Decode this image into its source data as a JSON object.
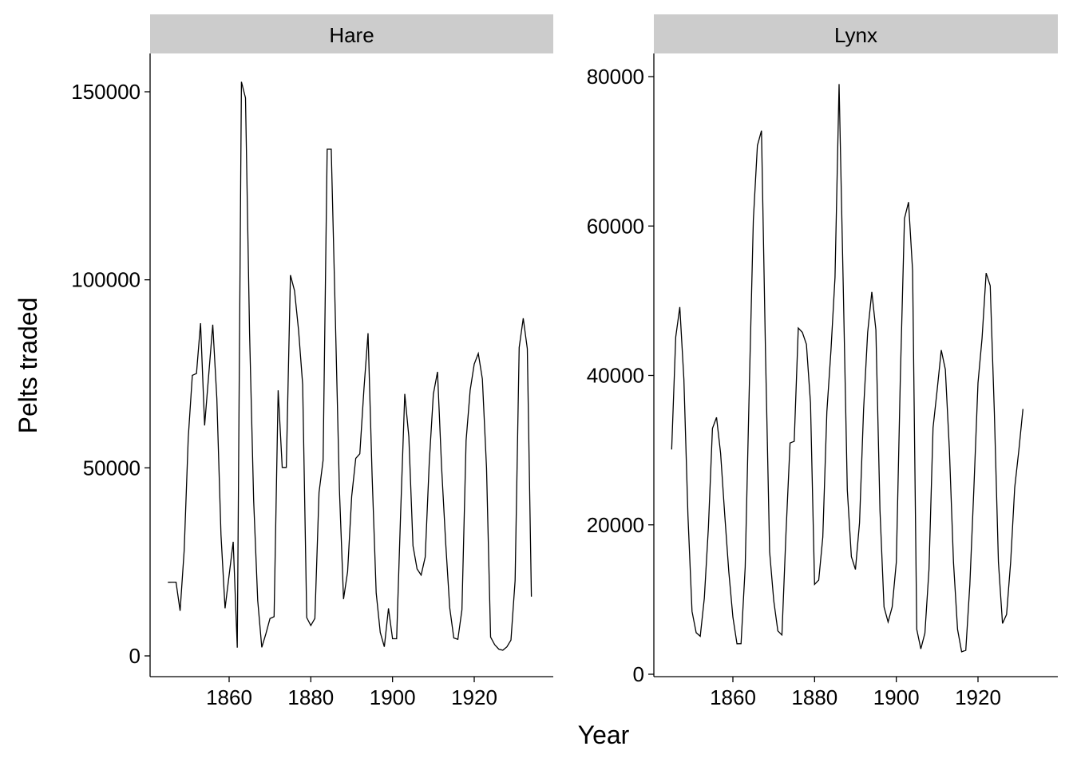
{
  "chart_data": {
    "type": "line",
    "title": "",
    "xlabel": "Year",
    "ylabel": "Pelts traded",
    "xlim": [
      1845,
      1935
    ],
    "panels": [
      {
        "name": "Hare",
        "ylim": [
          0,
          160000
        ],
        "y_ticks": [
          0,
          50000,
          100000,
          150000
        ],
        "x_ticks": [
          1860,
          1880,
          1900,
          1920
        ],
        "x": [
          1845,
          1846,
          1847,
          1848,
          1849,
          1850,
          1851,
          1852,
          1853,
          1854,
          1855,
          1856,
          1857,
          1858,
          1859,
          1860,
          1861,
          1862,
          1863,
          1864,
          1865,
          1866,
          1867,
          1868,
          1869,
          1870,
          1871,
          1872,
          1873,
          1874,
          1875,
          1876,
          1877,
          1878,
          1879,
          1880,
          1881,
          1882,
          1883,
          1884,
          1885,
          1886,
          1887,
          1888,
          1889,
          1890,
          1891,
          1892,
          1893,
          1894,
          1895,
          1896,
          1897,
          1898,
          1899,
          1900,
          1901,
          1902,
          1903,
          1904,
          1905,
          1906,
          1907,
          1908,
          1909,
          1910,
          1911,
          1912,
          1913,
          1914,
          1915,
          1916,
          1917,
          1918,
          1919,
          1920,
          1921,
          1922,
          1923,
          1924,
          1925,
          1926,
          1927,
          1928,
          1929,
          1930,
          1931,
          1932,
          1933,
          1934,
          1935
        ],
        "values": [
          19580,
          19600,
          19610,
          11990,
          28040,
          58000,
          74600,
          75090,
          88480,
          61280,
          74670,
          88060,
          68510,
          32190,
          12640,
          21490,
          30350,
          2180,
          152650,
          148360,
          85810,
          41410,
          14750,
          2280,
          5910,
          9950,
          10440,
          70640,
          50120,
          50120,
          101250,
          97120,
          86510,
          72170,
          10190,
          8080,
          9940,
          43420,
          52030,
          134730,
          134730,
          90380,
          44480,
          15110,
          22400,
          42400,
          52520,
          53750,
          71070,
          85790,
          47860,
          16730,
          6240,
          2420,
          12640,
          4560,
          4560,
          38460,
          69660,
          58280,
          29280,
          23120,
          21490,
          26270,
          51560,
          69600,
          75540,
          50260,
          30200,
          12820,
          4770,
          4400,
          12260,
          57220,
          70640,
          77580,
          80400,
          73640,
          50000,
          5000,
          3000,
          1800,
          1500,
          2400,
          4200,
          20000,
          82000,
          89760,
          81660,
          15760,
          null
        ]
      },
      {
        "name": "Lynx",
        "ylim": [
          0,
          80000
        ],
        "y_ticks": [
          0,
          20000,
          40000,
          60000,
          80000
        ],
        "x_ticks": [
          1860,
          1880,
          1900,
          1920
        ],
        "x": [
          1845,
          1846,
          1847,
          1848,
          1849,
          1850,
          1851,
          1852,
          1853,
          1854,
          1855,
          1856,
          1857,
          1858,
          1859,
          1860,
          1861,
          1862,
          1863,
          1864,
          1865,
          1866,
          1867,
          1868,
          1869,
          1870,
          1871,
          1872,
          1873,
          1874,
          1875,
          1876,
          1877,
          1878,
          1879,
          1880,
          1881,
          1882,
          1883,
          1884,
          1885,
          1886,
          1887,
          1888,
          1889,
          1890,
          1891,
          1892,
          1893,
          1894,
          1895,
          1896,
          1897,
          1898,
          1899,
          1900,
          1901,
          1902,
          1903,
          1904,
          1905,
          1906,
          1907,
          1908,
          1909,
          1910,
          1911,
          1912,
          1913,
          1914,
          1915,
          1916,
          1917,
          1918,
          1919,
          1920,
          1921,
          1922,
          1923,
          1924,
          1925,
          1926,
          1927,
          1928,
          1929,
          1930,
          1931,
          1932,
          1933,
          1934,
          1935
        ],
        "values": [
          30090,
          45150,
          49150,
          39520,
          21230,
          8420,
          5560,
          5080,
          10170,
          19600,
          32910,
          34380,
          29590,
          21300,
          13690,
          7650,
          4080,
          4090,
          14330,
          38220,
          60780,
          70770,
          72770,
          42680,
          16390,
          9830,
          5800,
          5260,
          18910,
          30950,
          31180,
          46340,
          45770,
          44150,
          36330,
          12030,
          12600,
          18340,
          35140,
          43290,
          53120,
          79000,
          52050,
          24670,
          15740,
          14020,
          20260,
          35450,
          45750,
          51180,
          46100,
          22000,
          9000,
          7000,
          9000,
          15000,
          40000,
          61000,
          63200,
          54000,
          6000,
          3400,
          5500,
          14000,
          33000,
          38000,
          43400,
          40800,
          30000,
          15000,
          6000,
          3000,
          3200,
          12000,
          25000,
          39000,
          45000,
          53700,
          52000,
          35000,
          15000,
          6800,
          8000,
          15000,
          25000,
          30000,
          35500,
          null,
          null,
          null,
          null
        ]
      }
    ]
  }
}
